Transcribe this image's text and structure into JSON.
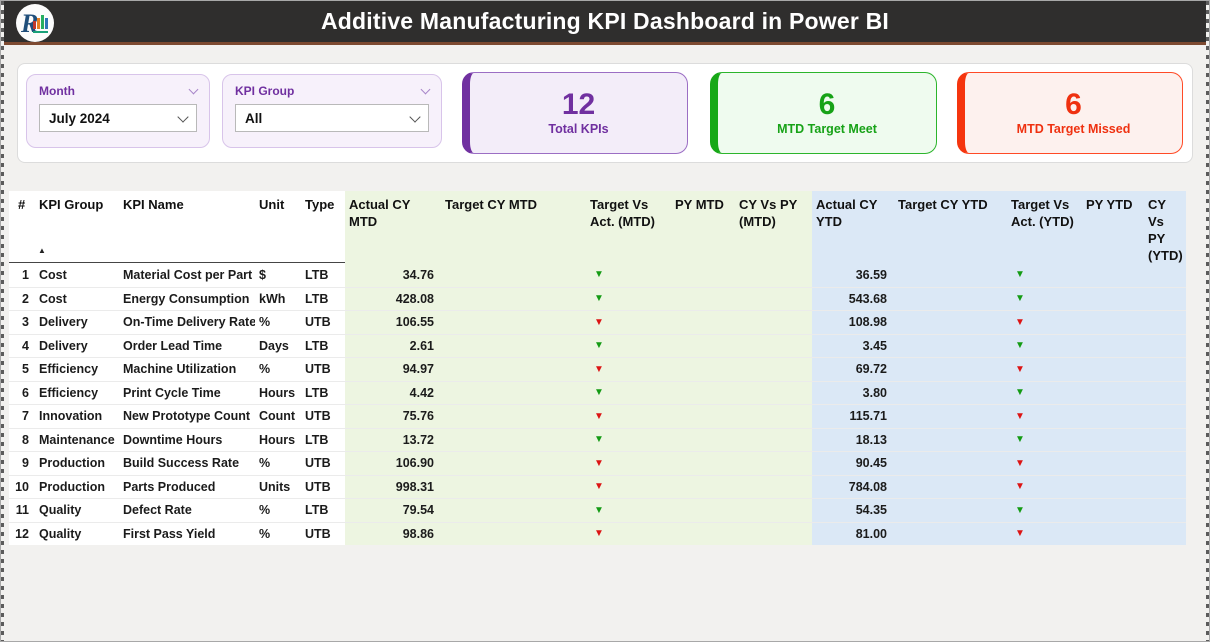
{
  "header": {
    "title": "Additive Manufacturing KPI Dashboard in Power BI",
    "logo_letter": "R"
  },
  "slicers": {
    "month": {
      "label": "Month",
      "value": "July 2024"
    },
    "kpi_group": {
      "label": "KPI Group",
      "value": "All"
    }
  },
  "kpi_cards": [
    {
      "value": "12",
      "label": "Total KPIs",
      "accent": "#7030a0"
    },
    {
      "value": "6",
      "label": "MTD Target Meet",
      "accent": "#17a217"
    },
    {
      "value": "6",
      "label": "MTD Target Missed",
      "accent": "#ef3110"
    }
  ],
  "icons": {
    "slicer_chevron": "chevron-down",
    "select_chevron": "chevron-down",
    "sort_ascending": "▲",
    "status_triangle": "▼"
  },
  "colors": {
    "header_bg": "#2f2e2d",
    "header_accent_line": "#7d4a31",
    "mtd_section_bg": "#edf5e1",
    "ytd_section_bg": "#dbe8f6",
    "green_arrow": "#149b14",
    "red_arrow": "#dc1414"
  },
  "table": {
    "columns": [
      "#",
      "KPI Group",
      "KPI Name",
      "Unit",
      "Type",
      "Actual CY MTD",
      "Target CY MTD",
      "Target Vs Act. (MTD)",
      "PY MTD",
      "CY Vs PY (MTD)",
      "Actual CY YTD",
      "Target CY YTD",
      "Target Vs Act. (YTD)",
      "PY YTD",
      "CY Vs PY (YTD)"
    ],
    "rows": [
      {
        "num": "1",
        "group": "Cost",
        "name": "Material Cost per Part",
        "unit": "$",
        "type": "LTB",
        "actual_mtd": "34.76",
        "mtd_status": "green",
        "actual_ytd": "36.59",
        "ytd_status": "green"
      },
      {
        "num": "2",
        "group": "Cost",
        "name": "Energy Consumption",
        "unit": "kWh",
        "type": "LTB",
        "actual_mtd": "428.08",
        "mtd_status": "green",
        "actual_ytd": "543.68",
        "ytd_status": "green"
      },
      {
        "num": "3",
        "group": "Delivery",
        "name": "On-Time Delivery Rate",
        "unit": "%",
        "type": "UTB",
        "actual_mtd": "106.55",
        "mtd_status": "red",
        "actual_ytd": "108.98",
        "ytd_status": "red"
      },
      {
        "num": "4",
        "group": "Delivery",
        "name": "Order Lead Time",
        "unit": "Days",
        "type": "LTB",
        "actual_mtd": "2.61",
        "mtd_status": "green",
        "actual_ytd": "3.45",
        "ytd_status": "green"
      },
      {
        "num": "5",
        "group": "Efficiency",
        "name": "Machine Utilization",
        "unit": "%",
        "type": "UTB",
        "actual_mtd": "94.97",
        "mtd_status": "red",
        "actual_ytd": "69.72",
        "ytd_status": "red"
      },
      {
        "num": "6",
        "group": "Efficiency",
        "name": "Print Cycle Time",
        "unit": "Hours",
        "type": "LTB",
        "actual_mtd": "4.42",
        "mtd_status": "green",
        "actual_ytd": "3.80",
        "ytd_status": "green"
      },
      {
        "num": "7",
        "group": "Innovation",
        "name": "New Prototype Count",
        "unit": "Count",
        "type": "UTB",
        "actual_mtd": "75.76",
        "mtd_status": "red",
        "actual_ytd": "115.71",
        "ytd_status": "red"
      },
      {
        "num": "8",
        "group": "Maintenance",
        "name": "Downtime Hours",
        "unit": "Hours",
        "type": "LTB",
        "actual_mtd": "13.72",
        "mtd_status": "green",
        "actual_ytd": "18.13",
        "ytd_status": "green"
      },
      {
        "num": "9",
        "group": "Production",
        "name": "Build Success Rate",
        "unit": "%",
        "type": "UTB",
        "actual_mtd": "106.90",
        "mtd_status": "red",
        "actual_ytd": "90.45",
        "ytd_status": "red"
      },
      {
        "num": "10",
        "group": "Production",
        "name": "Parts Produced",
        "unit": "Units",
        "type": "UTB",
        "actual_mtd": "998.31",
        "mtd_status": "red",
        "actual_ytd": "784.08",
        "ytd_status": "red"
      },
      {
        "num": "11",
        "group": "Quality",
        "name": "Defect Rate",
        "unit": "%",
        "type": "LTB",
        "actual_mtd": "79.54",
        "mtd_status": "green",
        "actual_ytd": "54.35",
        "ytd_status": "green"
      },
      {
        "num": "12",
        "group": "Quality",
        "name": "First Pass Yield",
        "unit": "%",
        "type": "UTB",
        "actual_mtd": "98.86",
        "mtd_status": "red",
        "actual_ytd": "81.00",
        "ytd_status": "red"
      }
    ]
  }
}
